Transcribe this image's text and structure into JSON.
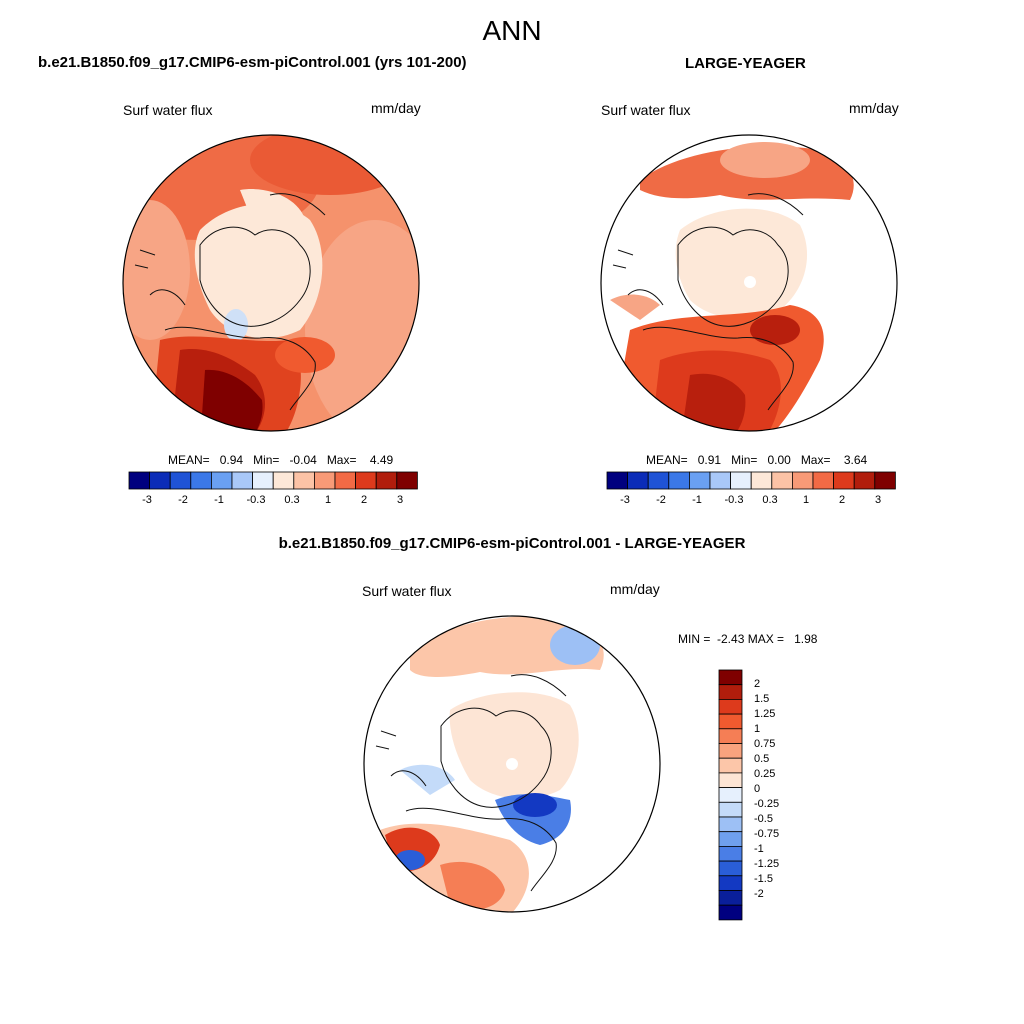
{
  "figure": {
    "season": "ANN",
    "left_title": "b.e21.B1850.f09_g17.CMIP6-esm-piControl.001 (yrs 101-200)",
    "right_title": "LARGE-YEAGER",
    "diff_title": "b.e21.B1850.f09_g17.CMIP6-esm-piControl.001 - LARGE-YEAGER"
  },
  "panels": {
    "model": {
      "variable": "Surf water flux",
      "units": "mm/day",
      "stats_mean_label": "MEAN=",
      "stats_mean": "0.94",
      "stats_min_label": "Min=",
      "stats_min": "-0.04",
      "stats_max_label": "Max=",
      "stats_max": "4.49"
    },
    "obs": {
      "variable": "Surf water flux",
      "units": "mm/day",
      "stats_mean_label": "MEAN=",
      "stats_mean": "0.91",
      "stats_min_label": "Min=",
      "stats_min": "0.00",
      "stats_max_label": "Max=",
      "stats_max": "3.64"
    },
    "diff": {
      "variable": "Surf water flux",
      "units": "mm/day",
      "min_label": "MIN =",
      "min": "-2.43",
      "max_label": "MAX =",
      "max": "1.98"
    }
  },
  "colorbar_main": {
    "colors": [
      "#00007f",
      "#0b2cb8",
      "#1f53d6",
      "#3b78e8",
      "#6aa0f2",
      "#a9c8f8",
      "#e6f0fd",
      "#fde8d8",
      "#fcc3a6",
      "#f89a77",
      "#f26a45",
      "#dd3a1c",
      "#b11d0c",
      "#7f0000"
    ],
    "tick_labels": [
      "-3",
      "-2",
      "-1",
      "-0.3",
      "0.3",
      "1",
      "2",
      "3"
    ]
  },
  "colorbar_diff": {
    "colors_top_to_bottom": [
      "#7f0000",
      "#b11d0c",
      "#dd3a1c",
      "#f05a2f",
      "#f57e55",
      "#f9a37e",
      "#fcc6a9",
      "#fde5d5",
      "#e6f0fd",
      "#c4dbf9",
      "#9dc0f5",
      "#6fa0ee",
      "#4a7ee6",
      "#2a5ed8",
      "#1339c2",
      "#0a1f9a",
      "#000080"
    ],
    "tick_labels": [
      "2",
      "1.5",
      "1.25",
      "1",
      "0.75",
      "0.5",
      "0.25",
      "0",
      "-0.25",
      "-0.5",
      "-0.75",
      "-1",
      "-1.25",
      "-1.5",
      "-2"
    ]
  }
}
